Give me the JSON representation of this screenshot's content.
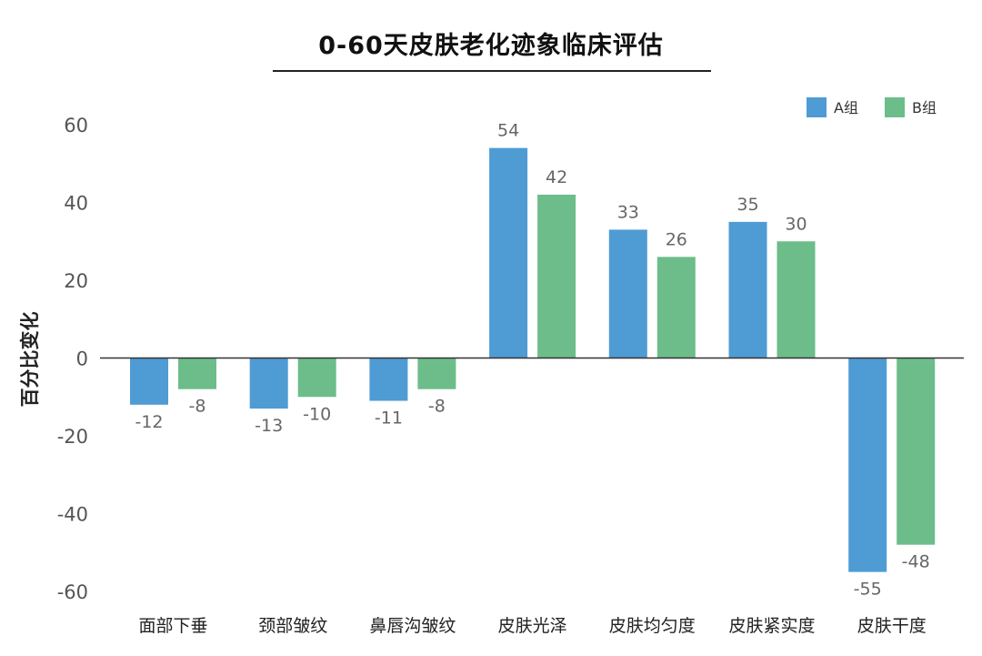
{
  "chart_data": {
    "type": "bar",
    "title": "0-60天皮肤老化迹象临床评估",
    "xlabel": "",
    "ylabel": "百分比变化",
    "ylim": [
      -60,
      60
    ],
    "yticks": [
      60,
      40,
      20,
      0,
      -20,
      -40,
      -60
    ],
    "categories": [
      "面部下垂",
      "颈部皱纹",
      "鼻唇沟皱纹",
      "皮肤光泽",
      "皮肤均匀度",
      "皮肤紧实度",
      "皮肤干度"
    ],
    "series": [
      {
        "name": "A组",
        "color": "#4f9bd4",
        "values": [
          -12,
          -13,
          -11,
          54,
          33,
          35,
          -55
        ]
      },
      {
        "name": "B组",
        "color": "#6cbd8a",
        "values": [
          -8,
          -10,
          -8,
          42,
          26,
          30,
          -48
        ]
      }
    ],
    "grid": false,
    "zero_line": true,
    "legend_position": "top-right"
  }
}
